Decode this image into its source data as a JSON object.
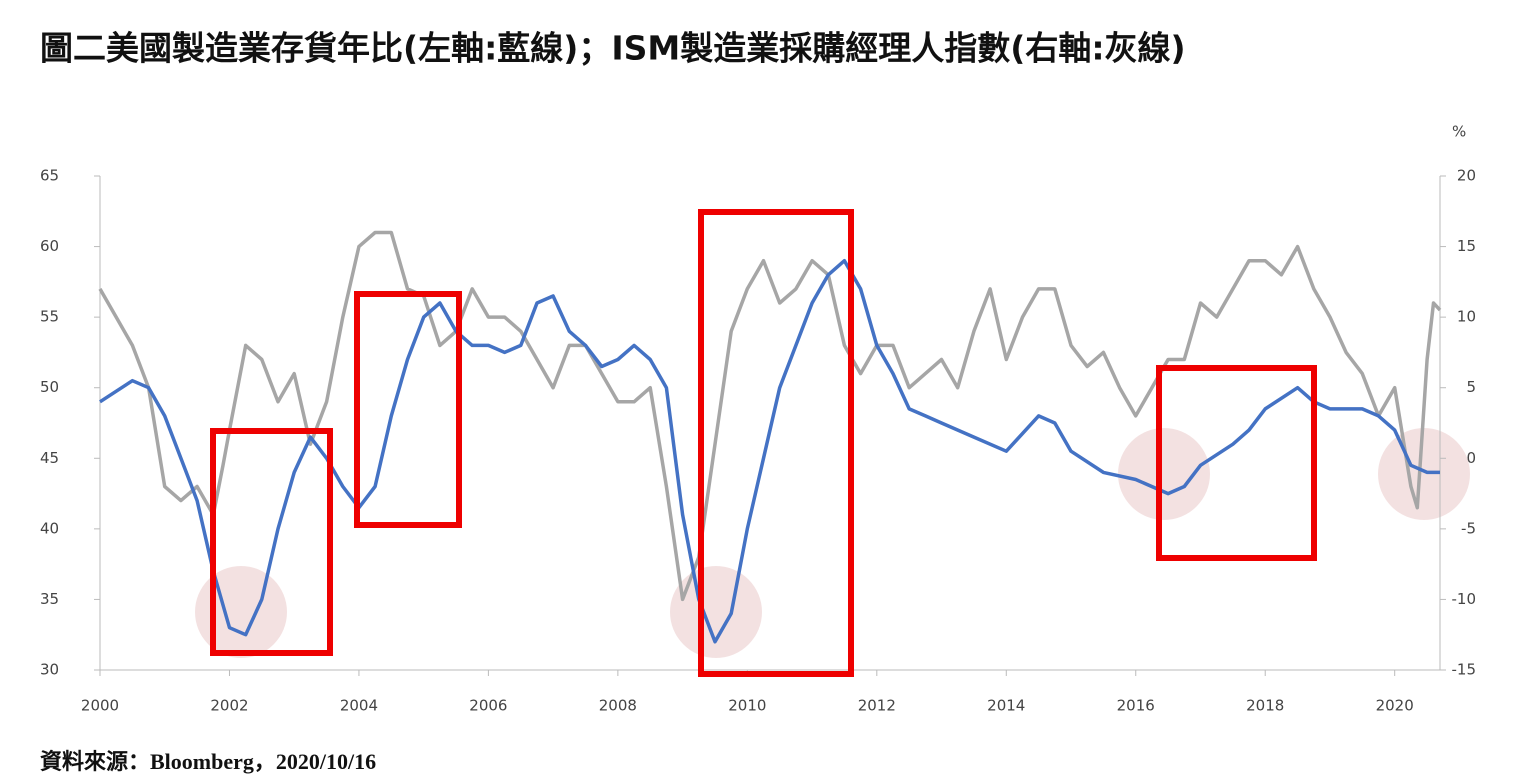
{
  "chart_data": {
    "type": "line",
    "title": "圖二美國製造業存貨年比(左軸:藍線)；ISM製造業採購經理人指數(右軸:灰線)",
    "source": "資料來源：Bloomberg，2020/10/16",
    "y2_unit": "%",
    "xlim": [
      2000,
      2020.7
    ],
    "xticks": [
      2000,
      2002,
      2004,
      2006,
      2008,
      2010,
      2012,
      2014,
      2016,
      2018,
      2020
    ],
    "ylim": [
      30,
      65
    ],
    "yticks": [
      30,
      35,
      40,
      45,
      50,
      55,
      60,
      65
    ],
    "y2lim": [
      -15,
      20
    ],
    "y2ticks": [
      -15,
      -10,
      -5,
      0,
      5,
      10,
      15,
      20
    ],
    "series": [
      {
        "color": "#a6a6a6",
        "axis": "y",
        "x": [
          2000,
          2000.25,
          2000.5,
          2000.75,
          2001,
          2001.25,
          2001.5,
          2001.75,
          2001.9,
          2002,
          2002.25,
          2002.5,
          2002.75,
          2003,
          2003.25,
          2003.5,
          2003.75,
          2004,
          2004.25,
          2004.5,
          2004.75,
          2005,
          2005.25,
          2005.5,
          2005.75,
          2006,
          2006.25,
          2006.5,
          2006.75,
          2007,
          2007.25,
          2007.5,
          2007.75,
          2008,
          2008.25,
          2008.5,
          2008.75,
          2009,
          2009.25,
          2009.5,
          2009.75,
          2010,
          2010.25,
          2010.5,
          2010.75,
          2011,
          2011.25,
          2011.5,
          2011.75,
          2012,
          2012.25,
          2012.5,
          2012.75,
          2013,
          2013.25,
          2013.5,
          2013.75,
          2014,
          2014.25,
          2014.5,
          2014.75,
          2015,
          2015.25,
          2015.5,
          2015.75,
          2016,
          2016.25,
          2016.5,
          2016.75,
          2017,
          2017.25,
          2017.5,
          2017.75,
          2018,
          2018.25,
          2018.5,
          2018.75,
          2019,
          2019.25,
          2019.5,
          2019.75,
          2020,
          2020.25,
          2020.35,
          2020.5,
          2020.6,
          2020.7
        ],
        "values": [
          57,
          55,
          53,
          50,
          43,
          42,
          43,
          41,
          44.5,
          47,
          53,
          52,
          49,
          51,
          46,
          49,
          55,
          60,
          61,
          61,
          57,
          56.5,
          53,
          54,
          57,
          55,
          55,
          54,
          52,
          50,
          53,
          53,
          51,
          49,
          49,
          50,
          43,
          35,
          38,
          46,
          54,
          57,
          59,
          56,
          57,
          59,
          58,
          53,
          51,
          53,
          53,
          50,
          51,
          52,
          50,
          54,
          57,
          52,
          55,
          57,
          57,
          53,
          51.5,
          52.5,
          50,
          48,
          50,
          52,
          52,
          56,
          55,
          57,
          59,
          59,
          58,
          60,
          57,
          55,
          52.5,
          51,
          48,
          50,
          43,
          41.5,
          52,
          56,
          55.5
        ]
      },
      {
        "color": "#4472c4",
        "axis": "y2",
        "x": [
          2000,
          2000.5,
          2000.75,
          2001,
          2001.25,
          2001.5,
          2001.75,
          2002,
          2002.25,
          2002.5,
          2002.75,
          2003,
          2003.25,
          2003.5,
          2003.75,
          2004,
          2004.25,
          2004.5,
          2004.75,
          2005,
          2005.25,
          2005.5,
          2005.75,
          2006,
          2006.25,
          2006.5,
          2006.75,
          2007,
          2007.25,
          2007.5,
          2007.75,
          2008,
          2008.25,
          2008.5,
          2008.75,
          2009,
          2009.25,
          2009.5,
          2009.75,
          2010,
          2010.25,
          2010.5,
          2010.75,
          2011,
          2011.25,
          2011.5,
          2011.75,
          2012,
          2012.25,
          2012.5,
          2012.75,
          2013,
          2013.5,
          2014,
          2014.5,
          2014.75,
          2015,
          2015.5,
          2016,
          2016.5,
          2016.75,
          2017,
          2017.5,
          2017.75,
          2018,
          2018.5,
          2018.75,
          2019,
          2019.5,
          2019.75,
          2020,
          2020.25,
          2020.5,
          2020.7
        ],
        "values": [
          4,
          5.5,
          5,
          3,
          0,
          -3,
          -8,
          -12,
          -12.5,
          -10,
          -5,
          -1,
          1.5,
          0,
          -2,
          -3.5,
          -2,
          3,
          7,
          10,
          11,
          9,
          8,
          8,
          7.5,
          8,
          11,
          11.5,
          9,
          8,
          6.5,
          7,
          8,
          7,
          5,
          -4,
          -10,
          -13,
          -11,
          -5,
          0,
          5,
          8,
          11,
          13,
          14,
          12,
          8,
          6,
          3.5,
          3,
          2.5,
          1.5,
          0.5,
          3,
          2.5,
          0.5,
          -1,
          -1.5,
          -2.5,
          -2,
          -0.5,
          1,
          2,
          3.5,
          5,
          4,
          3.5,
          3.5,
          3,
          2,
          -0.5,
          -1,
          -1
        ]
      }
    ]
  }
}
